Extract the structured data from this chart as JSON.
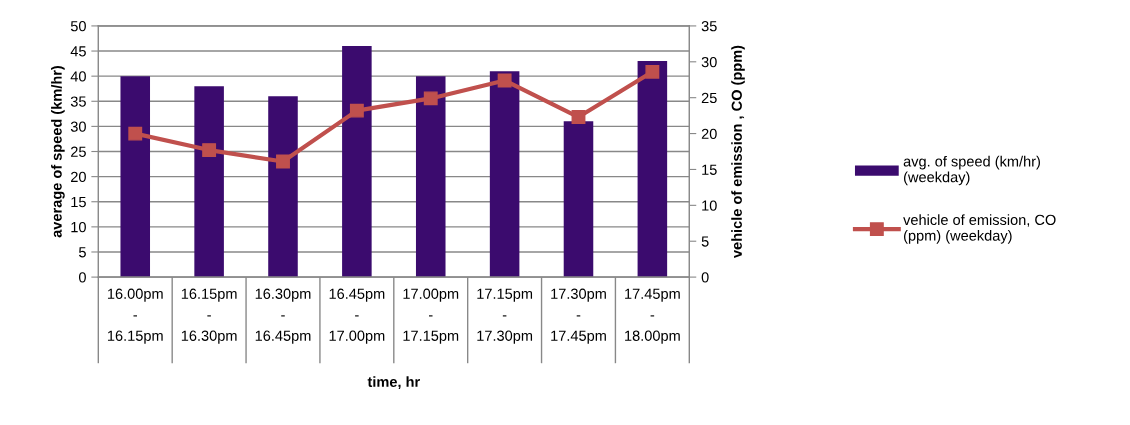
{
  "chart_data": {
    "type": "bar",
    "categories": [
      "16.00pm - 16.15pm",
      "16.15pm - 16.30pm",
      "16.30pm - 16.45pm",
      "16.45pm - 17.00pm",
      "17.00pm - 17.15pm",
      "17.15pm - 17.30pm",
      "17.30pm - 17.45pm",
      "17.45pm - 18.00pm"
    ],
    "series": [
      {
        "name": "avg. of speed (km/hr) (weekday)",
        "color": "#3b0b6e",
        "values": [
          40,
          38,
          36,
          46,
          40,
          41,
          31,
          43
        ]
      },
      {
        "name": "vehicle of emission, CO (ppm) (weekday)",
        "type": "line",
        "axis": "y2",
        "color": "#c0504d",
        "values": [
          20,
          17.7,
          16.1,
          23.2,
          24.9,
          27.4,
          22.3,
          28.6
        ]
      }
    ],
    "xlabel": "time, hr",
    "ylabel": "average of speed (km/hr)",
    "y2label": "vehicle of emission , CO (ppm)",
    "ylim": [
      0,
      50
    ],
    "yticks": [
      0,
      5,
      10,
      15,
      20,
      25,
      30,
      35,
      40,
      45,
      50
    ],
    "y2lim": [
      0,
      35
    ],
    "y2ticks": [
      0,
      5,
      10,
      15,
      20,
      25,
      30,
      35
    ],
    "grid": "y",
    "legend": "right",
    "marker": "square",
    "line_style": "solid"
  }
}
